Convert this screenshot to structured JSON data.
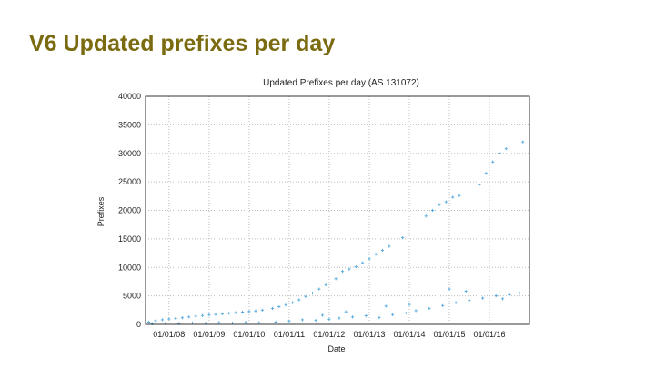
{
  "slide": {
    "title": "V6 Updated prefixes per day"
  },
  "chart_data": {
    "type": "scatter",
    "title": "Updated Prefixes per day (AS 131072)",
    "xlabel": "Date",
    "ylabel": "Prefixes",
    "x_ticks": [
      "01/01/08",
      "01/01/09",
      "01/01/10",
      "01/01/11",
      "01/01/12",
      "01/01/13",
      "01/01/14",
      "01/01/15",
      "01/01/16"
    ],
    "y_ticks": [
      0,
      5000,
      10000,
      15000,
      20000,
      25000,
      30000,
      35000,
      40000
    ],
    "xlim": [
      "2007-06-01",
      "2016-12-31"
    ],
    "ylim": [
      0,
      40000
    ],
    "grid": true,
    "marker_color": "#55aadd",
    "series": [
      {
        "name": "",
        "points": [
          [
            "2007-07-01",
            400
          ],
          [
            "2007-09-01",
            650
          ],
          [
            "2007-11-01",
            800
          ],
          [
            "2008-01-01",
            950
          ],
          [
            "2008-03-01",
            1050
          ],
          [
            "2008-05-01",
            1150
          ],
          [
            "2008-07-01",
            1300
          ],
          [
            "2008-09-01",
            1450
          ],
          [
            "2008-11-01",
            1550
          ],
          [
            "2009-01-01",
            1650
          ],
          [
            "2009-03-01",
            1750
          ],
          [
            "2009-05-01",
            1850
          ],
          [
            "2009-07-01",
            1950
          ],
          [
            "2009-09-01",
            2050
          ],
          [
            "2009-11-01",
            2150
          ],
          [
            "2010-01-01",
            2250
          ],
          [
            "2010-03-01",
            2350
          ],
          [
            "2010-05-01",
            2500
          ],
          [
            "2010-08-01",
            2800
          ],
          [
            "2010-10-01",
            3100
          ],
          [
            "2010-12-01",
            3400
          ],
          [
            "2011-02-01",
            3800
          ],
          [
            "2011-04-01",
            4300
          ],
          [
            "2011-06-01",
            4900
          ],
          [
            "2011-08-01",
            5500
          ],
          [
            "2011-10-01",
            6200
          ],
          [
            "2011-12-01",
            6900
          ],
          [
            "2012-03-01",
            8000
          ],
          [
            "2012-05-01",
            9300
          ],
          [
            "2012-07-01",
            9700
          ],
          [
            "2012-09-01",
            10100
          ],
          [
            "2012-11-01",
            10800
          ],
          [
            "2013-01-01",
            11500
          ],
          [
            "2013-03-01",
            12300
          ],
          [
            "2013-05-01",
            13000
          ],
          [
            "2013-07-01",
            13700
          ],
          [
            "2013-11-01",
            15200
          ],
          [
            "2014-06-01",
            19000
          ],
          [
            "2014-08-01",
            20000
          ],
          [
            "2014-10-01",
            21000
          ],
          [
            "2014-12-01",
            21500
          ],
          [
            "2015-02-01",
            22300
          ],
          [
            "2015-04-01",
            22600
          ],
          [
            "2015-10-01",
            24500
          ],
          [
            "2015-12-01",
            26500
          ],
          [
            "2016-02-01",
            28500
          ],
          [
            "2016-04-01",
            30000
          ],
          [
            "2016-06-01",
            30800
          ],
          [
            "2016-11-01",
            32000
          ],
          [
            "2007-08-01",
            100
          ],
          [
            "2007-12-01",
            200
          ],
          [
            "2008-04-01",
            150
          ],
          [
            "2008-08-01",
            250
          ],
          [
            "2008-12-01",
            180
          ],
          [
            "2009-04-01",
            300
          ],
          [
            "2009-08-01",
            220
          ],
          [
            "2009-12-01",
            350
          ],
          [
            "2010-04-01",
            280
          ],
          [
            "2010-09-01",
            400
          ],
          [
            "2011-01-01",
            600
          ],
          [
            "2011-05-01",
            800
          ],
          [
            "2011-09-01",
            700
          ],
          [
            "2012-01-01",
            900
          ],
          [
            "2012-04-01",
            1100
          ],
          [
            "2012-08-01",
            1300
          ],
          [
            "2012-12-01",
            1500
          ],
          [
            "2013-04-01",
            1200
          ],
          [
            "2013-08-01",
            1700
          ],
          [
            "2013-12-01",
            2000
          ],
          [
            "2014-03-01",
            2400
          ],
          [
            "2014-07-01",
            2800
          ],
          [
            "2014-11-01",
            3300
          ],
          [
            "2015-03-01",
            3800
          ],
          [
            "2015-07-01",
            4200
          ],
          [
            "2015-11-01",
            4600
          ],
          [
            "2016-03-01",
            5000
          ],
          [
            "2016-07-01",
            5200
          ],
          [
            "2016-10-01",
            5500
          ],
          [
            "2013-06-01",
            3200
          ],
          [
            "2014-01-01",
            3500
          ],
          [
            "2015-01-01",
            6200
          ],
          [
            "2015-06-01",
            5800
          ],
          [
            "2016-05-01",
            4500
          ],
          [
            "2012-06-01",
            2200
          ],
          [
            "2011-11-01",
            1600
          ]
        ]
      }
    ]
  }
}
